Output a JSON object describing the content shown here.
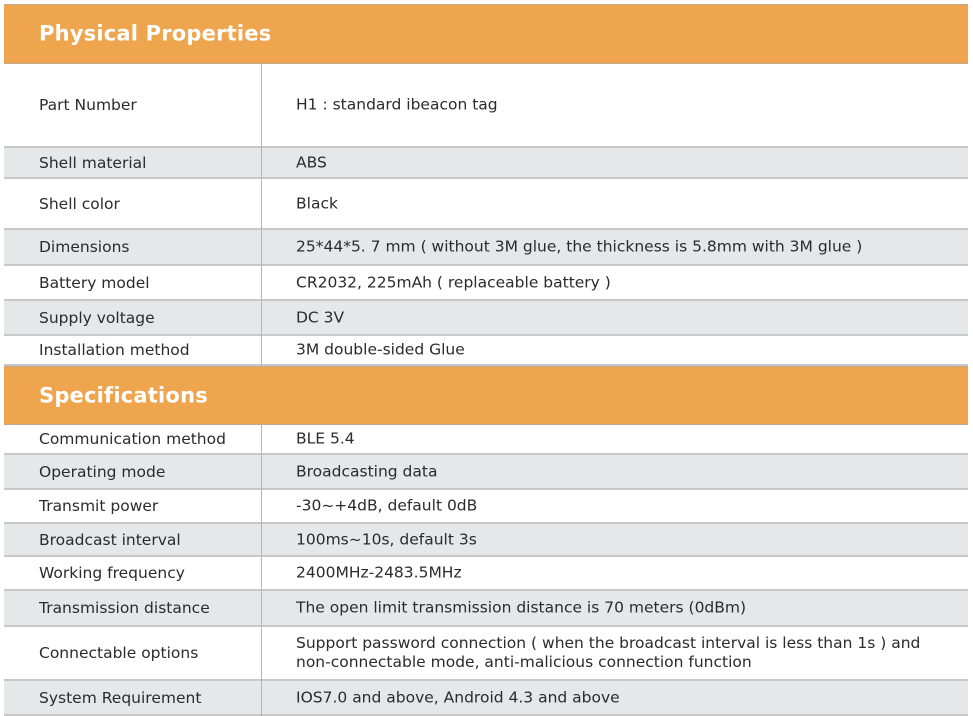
{
  "colors": {
    "header": "#efa44e",
    "stripe": "#e6e7e8"
  },
  "sections": [
    {
      "title": "Physical Properties",
      "rows": [
        {
          "label": "Part Number",
          "value": "H1 : standard ibeacon tag"
        },
        {
          "label": "Shell material",
          "value": "ABS"
        },
        {
          "label": "Shell color",
          "value": "Black"
        },
        {
          "label": "Dimensions",
          "value": "25*44*5. 7 mm ( without 3M glue, the thickness is 5.8mm with 3M glue )"
        },
        {
          "label": "Battery model",
          "value": "CR2032,  225mAh ( replaceable battery )"
        },
        {
          "label": "Supply voltage",
          "value": "DC 3V"
        },
        {
          "label": "Installation method",
          "value": "3M double-sided Glue"
        }
      ]
    },
    {
      "title": "Specifications",
      "rows": [
        {
          "label": "Communication method",
          "value": "BLE 5.4"
        },
        {
          "label": "Operating mode",
          "value": "Broadcasting data"
        },
        {
          "label": "Transmit power",
          "value": "-30~+4dB, default 0dB"
        },
        {
          "label": "Broadcast interval",
          "value": "100ms~10s, default 3s"
        },
        {
          "label": "Working frequency",
          "value": "2400MHz-2483.5MHz"
        },
        {
          "label": "Transmission distance",
          "value": "The open limit transmission distance is 70 meters (0dBm)"
        },
        {
          "label": "Connectable options",
          "value": "Support password connection ( when the broadcast interval is less than 1s ) and non-connectable mode, anti-malicious connection function"
        },
        {
          "label": "System Requirement",
          "value": "IOS7.0 and above, Android 4.3 and above"
        }
      ]
    }
  ]
}
